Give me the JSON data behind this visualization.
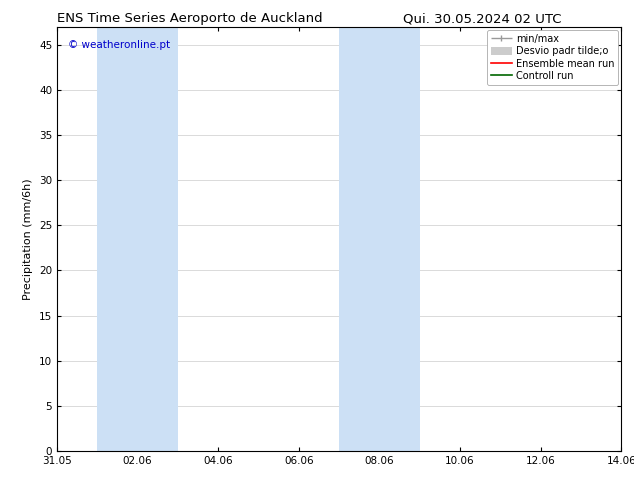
{
  "title_left": "ENS Time Series Aeroporto de Auckland",
  "title_right": "Qui. 30.05.2024 02 UTC",
  "ylabel": "Precipitation (mm/6h)",
  "watermark": "© weatheronline.pt",
  "watermark_color": "#0000cc",
  "ylim": [
    0,
    47
  ],
  "yticks": [
    0,
    5,
    10,
    15,
    20,
    25,
    30,
    35,
    40,
    45
  ],
  "x_total_days": 14,
  "xtick_labels": [
    "31.05",
    "02.06",
    "04.06",
    "06.06",
    "08.06",
    "10.06",
    "12.06",
    "14.06"
  ],
  "xtick_days": [
    0,
    2,
    4,
    6,
    8,
    10,
    12,
    14
  ],
  "shaded_regions": [
    {
      "start_day": 1.0,
      "end_day": 3.0,
      "color": "#cce0f5",
      "alpha": 1.0
    },
    {
      "start_day": 7.0,
      "end_day": 9.0,
      "color": "#cce0f5",
      "alpha": 1.0
    }
  ],
  "legend_entries": [
    {
      "label": "min/max",
      "color": "#999999",
      "linestyle": "-",
      "linewidth": 1.0
    },
    {
      "label": "Desvio padr tilde;o",
      "color": "#cccccc",
      "linestyle": "-",
      "linewidth": 6
    },
    {
      "label": "Ensemble mean run",
      "color": "#ff0000",
      "linestyle": "-",
      "linewidth": 1.2
    },
    {
      "label": "Controll run",
      "color": "#006600",
      "linestyle": "-",
      "linewidth": 1.2
    }
  ],
  "background_color": "#ffffff",
  "plot_bg_color": "#ffffff",
  "border_color": "#000000",
  "grid_color": "#cccccc",
  "title_fontsize": 9.5,
  "label_fontsize": 8,
  "tick_fontsize": 7.5,
  "legend_fontsize": 7,
  "watermark_fontsize": 7.5
}
